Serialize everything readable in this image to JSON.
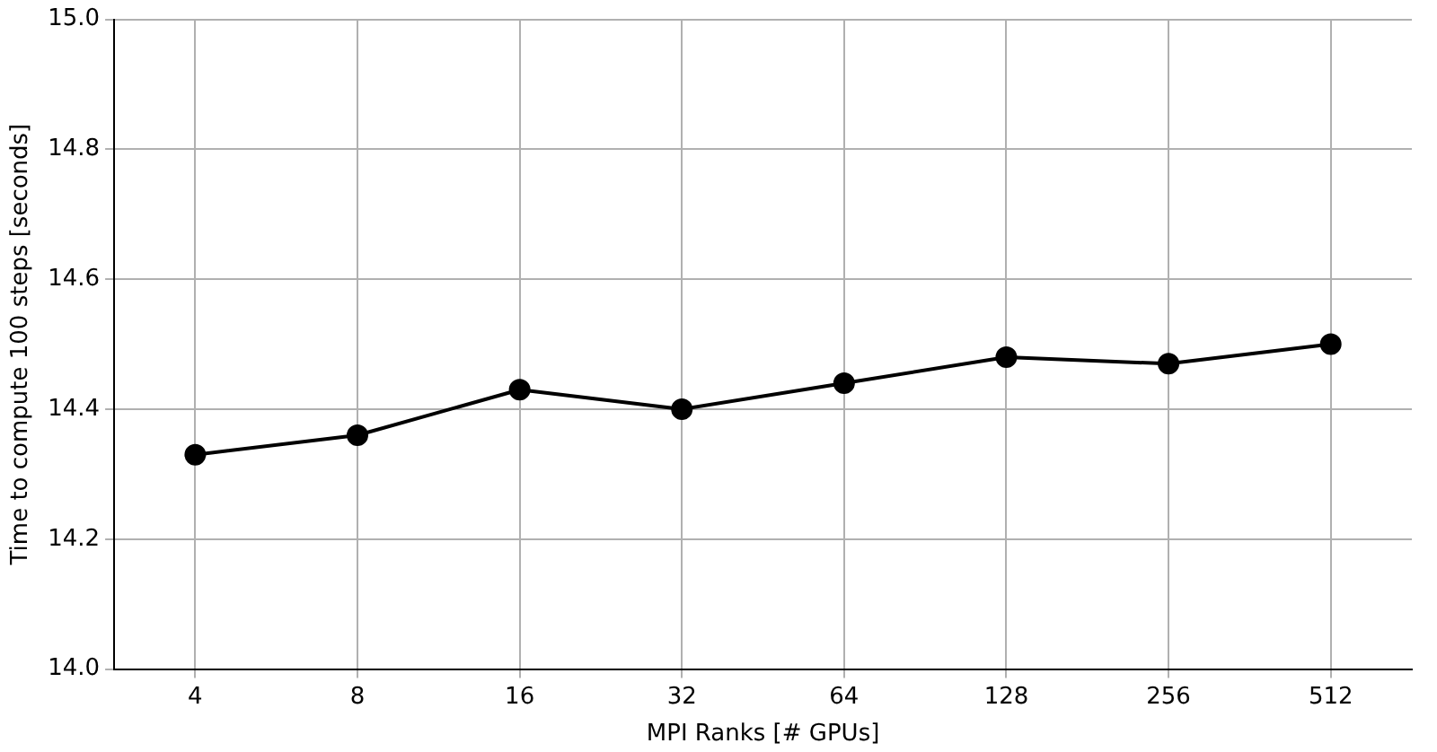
{
  "chart_data": {
    "type": "line",
    "xlabel": "MPI Ranks [# GPUs]",
    "ylabel": "Time to compute 100 steps [seconds]",
    "categories": [
      "4",
      "8",
      "16",
      "32",
      "64",
      "128",
      "256",
      "512"
    ],
    "series": [
      {
        "color": "#000000",
        "values": [
          14.33,
          14.36,
          14.43,
          14.4,
          14.44,
          14.48,
          14.47,
          14.5
        ]
      }
    ],
    "ylim": [
      14.0,
      15.0
    ],
    "yticks": [
      {
        "value": 14.0,
        "label": "14.0"
      },
      {
        "value": 14.2,
        "label": "14.2"
      },
      {
        "value": 14.4,
        "label": "14.4"
      },
      {
        "value": 14.6,
        "label": "14.6"
      },
      {
        "value": 14.8,
        "label": "14.8"
      },
      {
        "value": 15.0,
        "label": "15.0"
      }
    ],
    "grid": true,
    "marker": "circle",
    "line_style": "solid"
  }
}
